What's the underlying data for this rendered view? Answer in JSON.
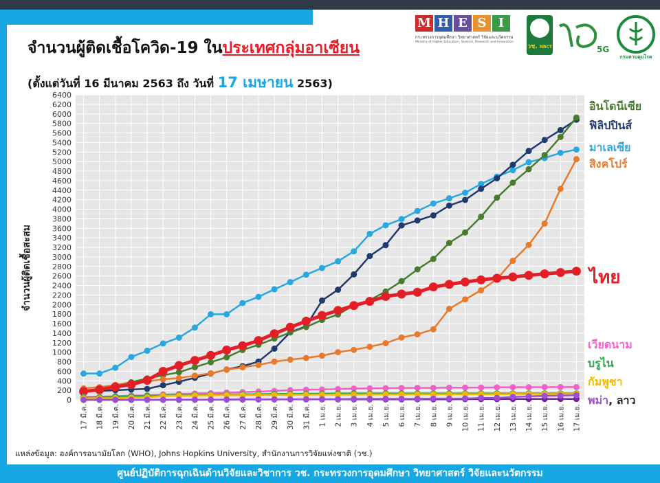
{
  "header": {
    "title_part1": "จำนวนผู้ติดเชื้อโควิด-19 ใน",
    "title_part2": "ประเทศกลุ่มอาเซียน",
    "subtitle_part1": "(ตั้งแต่วันที่ 16 มีนาคม 2563 ถึง วันที่ ",
    "subtitle_date": "17 เมษายน",
    "subtitle_part2": " 2563)"
  },
  "logos": {
    "mhesi_letters": [
      "M",
      "H",
      "E",
      "S",
      "I"
    ],
    "mhesi_colors": [
      "#d02b2b",
      "#2e5fa8",
      "#6a4e9e",
      "#e8912e",
      "#3a9a45"
    ],
    "mhesi_sub_thai": "กระทรวงการอุดมศึกษา วิทยาศาสตร์ วิจัยและนวัตกรรม",
    "mhesi_sub_en": "Ministry of Higher Education, Science, Research and Innovation",
    "nrct_text": "วช.",
    "nrct_sub": "NRCT",
    "ddc_text": "กรมควบคุมโรค"
  },
  "source": "แหล่งข้อมูล: องค์การอนามัยโลก (WHO), Johns Hopkins University, สำนักงานการวิจัยแห่งชาติ (วช.)",
  "footer": "ศูนย์ปฏิบัติการฉุกเฉินด้านวิจัยและวิชาการ   วช.   กระทรวงการอุดมศึกษา วิทยาศาสตร์ วิจัยและนวัตกรรม",
  "labels": {
    "indonesia": "อินโดนีเซีย",
    "philippines": "ฟิลิปปินส์",
    "malaysia": "มาเลเซีย",
    "singapore": "สิงคโปร์",
    "thailand": "ไทย",
    "vietnam": "เวียดนาม",
    "brunei": "บรูไน",
    "cambodia": "กัมพูชา",
    "myanmar_laos_1": "พม่า",
    "myanmar_laos_sep": ", ",
    "myanmar_laos_2": "ลาว"
  },
  "chart_data": {
    "type": "line",
    "ylabel": "จำนวนผู้ติดเชื้อสะสม",
    "ylim": [
      0,
      6400
    ],
    "yticks": [
      0,
      200,
      400,
      600,
      800,
      1000,
      1200,
      1400,
      1600,
      1800,
      2000,
      2200,
      2400,
      2600,
      2800,
      3000,
      3200,
      3400,
      3600,
      3800,
      4000,
      4200,
      4400,
      4600,
      4800,
      5000,
      5200,
      5400,
      5600,
      5800,
      6000,
      6200,
      6400
    ],
    "grid": true,
    "x": [
      "17 มี.ค.",
      "18 มี.ค.",
      "19 มี.ค.",
      "20 มี.ค.",
      "21 มี.ค.",
      "22 มี.ค.",
      "23 มี.ค.",
      "24 มี.ค.",
      "25 มี.ค.",
      "26 มี.ค.",
      "27 มี.ค.",
      "28 มี.ค.",
      "29 มี.ค.",
      "30 มี.ค.",
      "31 มี.ค.",
      "1 เม.ย.",
      "2 เม.ย.",
      "3 เม.ย.",
      "4 เม.ย.",
      "5 เม.ย.",
      "6 เม.ย.",
      "7 เม.ย.",
      "8 เม.ย.",
      "9 เม.ย.",
      "10 เม.ย.",
      "11 เม.ย.",
      "12 เม.ย.",
      "13 เม.ย.",
      "14 เม.ย.",
      "15 เม.ย.",
      "16 เม.ย.",
      "17 เม.ย."
    ],
    "series": [
      {
        "name": "มาเลเซีย",
        "color": "#29a8e0",
        "width": 2.5,
        "r": 4.5,
        "values": [
          553,
          553,
          673,
          900,
          1030,
          1183,
          1306,
          1518,
          1796,
          1796,
          2031,
          2161,
          2320,
          2470,
          2626,
          2766,
          2908,
          3116,
          3483,
          3662,
          3793,
          3963,
          4119,
          4228,
          4346,
          4530,
          4683,
          4817,
          4987,
          5072,
          5182,
          5251
        ]
      },
      {
        "name": "ฟิลิปปินส์",
        "color": "#1f3a6e",
        "width": 2.5,
        "r": 4.5,
        "values": [
          187,
          187,
          202,
          217,
          230,
          307,
          380,
          462,
          552,
          636,
          707,
          803,
          1075,
          1418,
          1546,
          2084,
          2311,
          2633,
          3018,
          3246,
          3660,
          3764,
          3870,
          4076,
          4195,
          4428,
          4648,
          4932,
          5223,
          5453,
          5660,
          5878
        ]
      },
      {
        "name": "อินโดนีเซีย",
        "color": "#4a7c2f",
        "width": 2.5,
        "r": 4.5,
        "values": [
          172,
          227,
          309,
          369,
          450,
          514,
          579,
          686,
          790,
          893,
          1046,
          1155,
          1285,
          1414,
          1528,
          1677,
          1790,
          1986,
          2092,
          2273,
          2491,
          2738,
          2956,
          3293,
          3512,
          3842,
          4241,
          4557,
          4839,
          5136,
          5516,
          5923
        ]
      },
      {
        "name": "สิงคโปร์",
        "color": "#e87a2c",
        "width": 2.5,
        "r": 4.5,
        "values": [
          243,
          266,
          313,
          345,
          385,
          432,
          455,
          509,
          558,
          631,
          683,
          732,
          802,
          844,
          879,
          926,
          1000,
          1049,
          1114,
          1189,
          1309,
          1375,
          1481,
          1910,
          2108,
          2299,
          2532,
          2918,
          3252,
          3699,
          4427,
          5050
        ]
      },
      {
        "name": "ไทย",
        "color": "#e41e26",
        "width": 5,
        "r": 6.5,
        "values": [
          177,
          212,
          272,
          322,
          411,
          599,
          721,
          827,
          934,
          1045,
          1136,
          1245,
          1388,
          1524,
          1651,
          1771,
          1875,
          1978,
          2067,
          2169,
          2220,
          2258,
          2369,
          2423,
          2473,
          2518,
          2551,
          2579,
          2613,
          2643,
          2672,
          2700
        ]
      },
      {
        "name": "เวียดนาม",
        "color": "#f062c8",
        "width": 2.5,
        "r": 4.5,
        "values": [
          61,
          66,
          76,
          91,
          94,
          113,
          123,
          134,
          141,
          153,
          163,
          174,
          188,
          203,
          212,
          218,
          227,
          237,
          241,
          245,
          249,
          251,
          251,
          255,
          257,
          258,
          262,
          265,
          265,
          267,
          268,
          268
        ]
      },
      {
        "name": "บรูไน",
        "color": "#27a74a",
        "width": 2.5,
        "r": 4.5,
        "values": [
          54,
          56,
          68,
          75,
          88,
          91,
          104,
          104,
          109,
          114,
          115,
          120,
          126,
          127,
          129,
          131,
          133,
          135,
          135,
          135,
          135,
          135,
          135,
          135,
          136,
          136,
          136,
          136,
          136,
          136,
          136,
          136
        ]
      },
      {
        "name": "กัมพูชา",
        "color": "#f5b800",
        "width": 2.5,
        "r": 4.5,
        "values": [
          33,
          35,
          37,
          47,
          53,
          84,
          87,
          91,
          96,
          99,
          99,
          103,
          103,
          107,
          109,
          109,
          109,
          110,
          114,
          114,
          115,
          117,
          117,
          117,
          119,
          120,
          120,
          122,
          122,
          122,
          122,
          122
        ]
      },
      {
        "name": "ลาว",
        "color": "#7a1fa2",
        "width": 2.5,
        "r": 4.5,
        "values": [
          0,
          0,
          0,
          0,
          0,
          0,
          0,
          2,
          3,
          6,
          8,
          8,
          9,
          10,
          10,
          10,
          10,
          10,
          10,
          10,
          10,
          11,
          11,
          12,
          15,
          16,
          16,
          17,
          18,
          18,
          19,
          19
        ]
      },
      {
        "name": "พม่า",
        "color": "#9b4fd4",
        "width": 2.5,
        "r": 4.5,
        "values": [
          0,
          0,
          0,
          0,
          0,
          0,
          3,
          3,
          3,
          5,
          8,
          8,
          8,
          10,
          14,
          15,
          15,
          20,
          21,
          21,
          22,
          22,
          27,
          27,
          28,
          41,
          41,
          62,
          74,
          85,
          88,
          98
        ]
      }
    ]
  }
}
